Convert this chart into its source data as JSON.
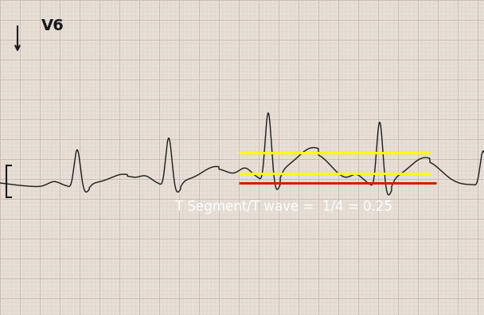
{
  "background_color": "#e8e0d8",
  "grid_minor_color": "#d4c8c0",
  "grid_major_color": "#c8b8b0",
  "ecg_color": "#1a1a1a",
  "label_v6": "V6",
  "annotation_text": "T Segment/T wave =  1/4 = 0.25",
  "annotation_color": "#ffffff",
  "annotation_fontsize": 12,
  "yellow_line_color": "#ffff00",
  "red_line_color": "#cc2200",
  "fig_width": 6.08,
  "fig_height": 3.96,
  "dpi": 100,
  "xlim": [
    0,
    608
  ],
  "ylim": [
    0,
    396
  ]
}
